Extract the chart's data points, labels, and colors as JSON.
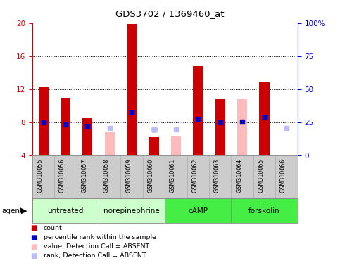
{
  "title": "GDS3702 / 1369460_at",
  "samples": [
    "GSM310055",
    "GSM310056",
    "GSM310057",
    "GSM310058",
    "GSM310059",
    "GSM310060",
    "GSM310061",
    "GSM310062",
    "GSM310063",
    "GSM310064",
    "GSM310065",
    "GSM310066"
  ],
  "group_bounds": [
    {
      "label": "untreated",
      "color": "#ccffcc",
      "start": 0,
      "end": 2
    },
    {
      "label": "norepinephrine",
      "color": "#ccffcc",
      "start": 3,
      "end": 5
    },
    {
      "label": "cAMP",
      "color": "#44ee44",
      "start": 6,
      "end": 8
    },
    {
      "label": "forskolin",
      "color": "#44ee44",
      "start": 9,
      "end": 11
    }
  ],
  "ylim_left": [
    4,
    20
  ],
  "ylim_right": [
    0,
    100
  ],
  "yticks_left": [
    4,
    8,
    12,
    16,
    20
  ],
  "yticks_right": [
    0,
    25,
    50,
    75,
    100
  ],
  "ytick_labels_right": [
    "0",
    "25",
    "50",
    "75",
    "100%"
  ],
  "baseline": 4,
  "red_values": [
    12.2,
    10.9,
    8.5,
    null,
    19.9,
    6.2,
    null,
    14.8,
    10.8,
    null,
    12.8,
    null
  ],
  "pink_values": [
    null,
    null,
    null,
    6.8,
    null,
    null,
    6.3,
    null,
    null,
    10.8,
    null,
    null
  ],
  "blue_values": [
    8.0,
    7.7,
    7.5,
    null,
    9.2,
    7.1,
    null,
    8.4,
    8.0,
    8.1,
    8.6,
    null
  ],
  "lblue_values": [
    null,
    null,
    null,
    7.3,
    null,
    7.1,
    7.1,
    null,
    null,
    null,
    null,
    7.3
  ],
  "absent_marker": [
    false,
    false,
    false,
    true,
    false,
    true,
    true,
    false,
    false,
    true,
    false,
    true
  ],
  "bar_color": "#cc0000",
  "blue_color": "#0000cc",
  "pink_color": "#ffbbbb",
  "lblue_color": "#bbbbff",
  "left_axis_color": "#cc0000",
  "right_axis_color": "#0000cc",
  "sample_area_color": "#cccccc",
  "legend_items": [
    {
      "color": "#cc0000",
      "label": "count"
    },
    {
      "color": "#0000cc",
      "label": "percentile rank within the sample"
    },
    {
      "color": "#ffbbbb",
      "label": "value, Detection Call = ABSENT"
    },
    {
      "color": "#bbbbff",
      "label": "rank, Detection Call = ABSENT"
    }
  ]
}
